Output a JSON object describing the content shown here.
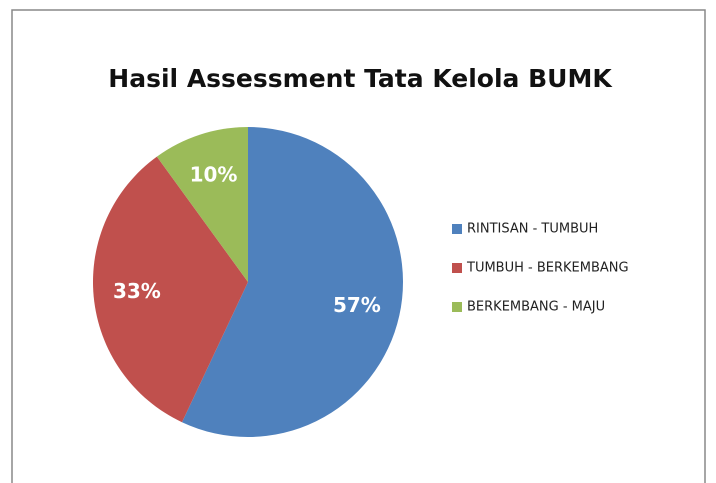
{
  "chart_data": {
    "type": "pie",
    "title": "Hasil Assessment Tata Kelola BUMK",
    "categories": [
      "RINTISAN - TUMBUH",
      "TUMBUH - BERKEMBANG",
      "BERKEMBANG - MAJU"
    ],
    "values": [
      57,
      33,
      10
    ],
    "value_labels": [
      "57%",
      "33%",
      "10%"
    ],
    "colors": [
      "#4f81bd",
      "#c0504d",
      "#9bbb59"
    ],
    "legend": "right"
  }
}
